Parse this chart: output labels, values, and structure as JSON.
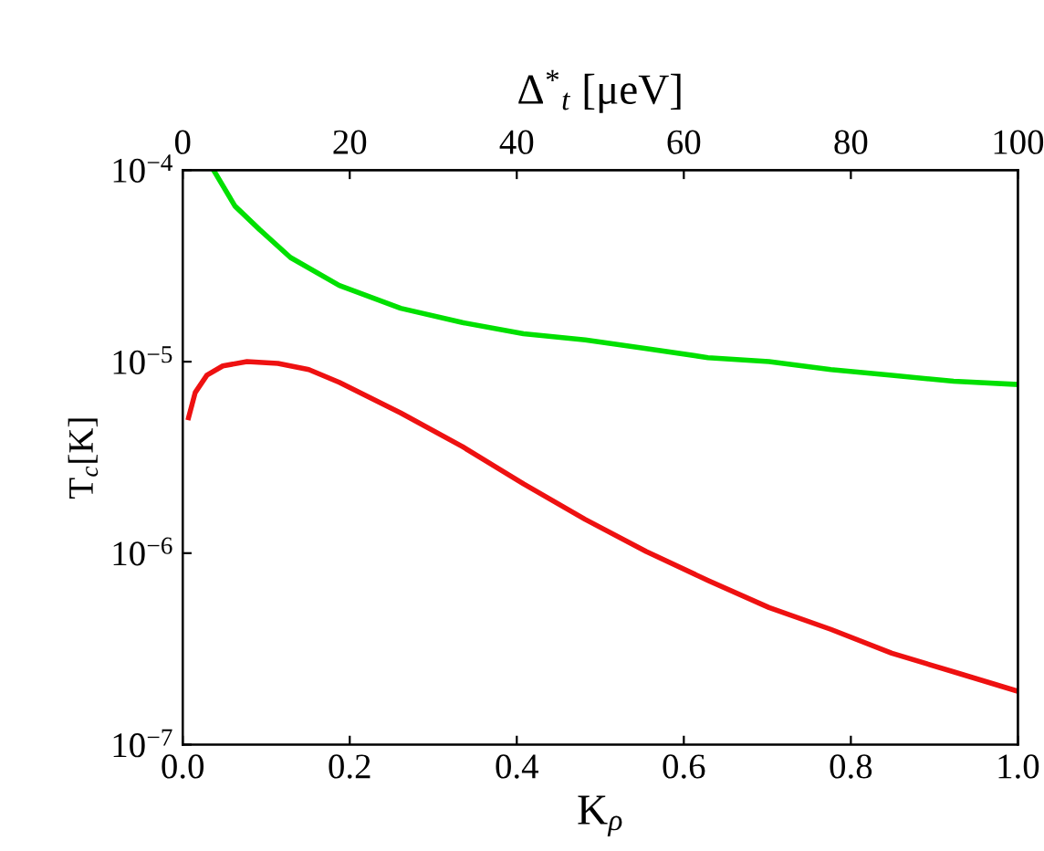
{
  "chart_data": {
    "type": "line",
    "xlabel": "K$_{ρ}$",
    "ylabel": "T$_{c}$[K]",
    "x2label": "Δ$^{*}$$_{t}$ [μeV]",
    "log": "y",
    "grid": false,
    "legend": false,
    "marker": "none",
    "line_style": "solid",
    "xlim": [
      0,
      1.0
    ],
    "xticks": [
      {
        "value": 0,
        "label": "0.0"
      },
      0.2,
      0.4,
      0.6,
      0.8,
      {
        "value": 1.0,
        "label": "1.0"
      }
    ],
    "x2lim": [
      0,
      100
    ],
    "x2ticks": [
      0,
      20,
      40,
      60,
      80,
      100
    ],
    "ylim": [
      1e-07,
      0.0001
    ],
    "yticks": [
      {
        "value": 1e-07,
        "label": "10$^{−7}$"
      },
      {
        "value": 1e-06,
        "label": "10$^{−6}$"
      },
      {
        "value": 1e-05,
        "label": "10$^{−5}$"
      },
      {
        "value": 0.0001,
        "label": "10$^{−4}$"
      }
    ],
    "series": [
      {
        "color": "#00e000",
        "x": [
          0.037,
          0.0625,
          0.092,
          0.129,
          0.1875,
          0.261,
          0.335,
          0.408,
          0.482,
          0.555,
          0.629,
          0.702,
          0.776,
          0.849,
          0.923,
          1.0
        ],
        "values": [
          0.0001,
          6.5e-05,
          4.9e-05,
          3.5e-05,
          2.5e-05,
          1.9e-05,
          1.6e-05,
          1.4e-05,
          1.3e-05,
          1.17e-05,
          1.05e-05,
          1e-05,
          9.1e-06,
          8.5e-06,
          7.9e-06,
          7.6e-06
        ]
      },
      {
        "color": "#ee1111",
        "x": [
          0.007,
          0.015,
          0.029,
          0.048,
          0.077,
          0.114,
          0.151,
          0.1875,
          0.261,
          0.335,
          0.408,
          0.482,
          0.555,
          0.629,
          0.702,
          0.776,
          0.849,
          0.923,
          1.0
        ],
        "values": [
          5.1e-06,
          6.9e-06,
          8.5e-06,
          9.5e-06,
          1e-05,
          9.8e-06,
          9.1e-06,
          7.8e-06,
          5.4e-06,
          3.6e-06,
          2.3e-06,
          1.5e-06,
          1.02e-06,
          7.2e-07,
          5.2e-07,
          4e-07,
          3e-07,
          2.4e-07,
          1.9e-07
        ]
      }
    ]
  }
}
